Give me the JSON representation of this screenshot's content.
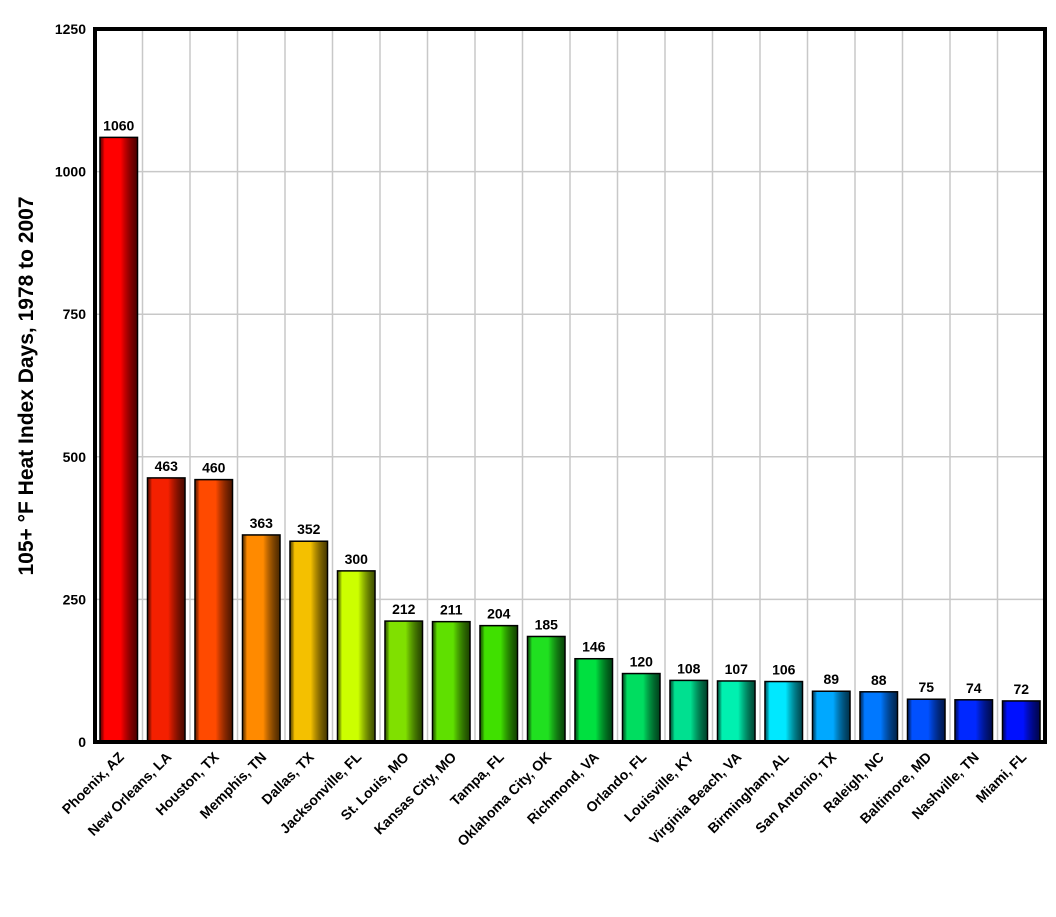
{
  "chart_data": {
    "type": "bar",
    "title": "",
    "xlabel": "",
    "ylabel": "105+ °F Heat Index Days, 1978 to 2007",
    "ylim": [
      0,
      1250
    ],
    "yticks": [
      0,
      250,
      500,
      750,
      1000,
      1250
    ],
    "grid": true,
    "legend": "none",
    "categories": [
      "Phoenix, AZ",
      "New Orleans, LA",
      "Houston, TX",
      "Memphis, TN",
      "Dallas, TX",
      "Jacksonville, FL",
      "St. Louis, MO",
      "Kansas City, MO",
      "Tampa, FL",
      "Oklahoma City, OK",
      "Richmond, VA",
      "Orlando, FL",
      "Louisville, KY",
      "Virginia Beach, VA",
      "Birmingham, AL",
      "San Antonio, TX",
      "Raleigh, NC",
      "Baltimore, MD",
      "Nashville, TN",
      "Miami, FL"
    ],
    "values": [
      1060,
      463,
      460,
      363,
      352,
      300,
      212,
      211,
      204,
      185,
      146,
      120,
      108,
      107,
      106,
      89,
      88,
      75,
      74,
      72
    ],
    "colors": [
      "#ff0000",
      "#f42000",
      "#ff4a00",
      "#ff8a00",
      "#f4c000",
      "#ccff00",
      "#80e000",
      "#5fe000",
      "#40e000",
      "#20e020",
      "#00e040",
      "#00dd60",
      "#00e090",
      "#00f0b0",
      "#00e8ff",
      "#00a8ff",
      "#0078ff",
      "#0050ff",
      "#0028ff",
      "#0010ff"
    ]
  }
}
